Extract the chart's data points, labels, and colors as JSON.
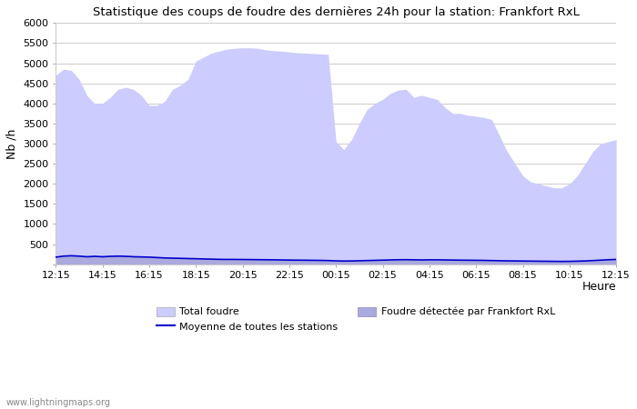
{
  "title": "Statistique des coups de foudre des dernières 24h pour la station: Frankfort RxL",
  "ylabel": "Nb /h",
  "xlabel": "Heure",
  "watermark": "www.lightningmaps.org",
  "x_ticks_labels": [
    "12:15",
    "14:15",
    "16:15",
    "18:15",
    "20:15",
    "22:15",
    "00:15",
    "02:15",
    "04:15",
    "06:15",
    "08:15",
    "10:15",
    "12:15"
  ],
  "ylim": [
    0,
    6000
  ],
  "yticks": [
    0,
    500,
    1000,
    1500,
    2000,
    2500,
    3000,
    3500,
    4000,
    4500,
    5000,
    5500,
    6000
  ],
  "legend_entry_total": "Total foudre",
  "legend_entry_detected": "Foudre détectée par Frankfort RxL",
  "legend_entry_mean": "Moyenne de toutes les stations",
  "total_foudre_color": "#ccccff",
  "detected_color": "#aaaadd",
  "mean_color": "#0000cc",
  "background_color": "#ffffff",
  "grid_color": "#cccccc",
  "total_foudre_values": [
    4700,
    4850,
    4820,
    4600,
    4200,
    4000,
    4000,
    4150,
    4350,
    4400,
    4350,
    4200,
    3950,
    3950,
    4050,
    4350,
    4450,
    4600,
    5050,
    5150,
    5250,
    5300,
    5350,
    5370,
    5380,
    5380,
    5370,
    5330,
    5310,
    5300,
    5280,
    5260,
    5250,
    5240,
    5230,
    5220,
    3050,
    2850,
    3100,
    3500,
    3850,
    4000,
    4100,
    4250,
    4330,
    4350,
    4150,
    4200,
    4150,
    4100,
    3900,
    3750,
    3750,
    3700,
    3680,
    3650,
    3600,
    3200,
    2800,
    2500,
    2200,
    2050,
    2000,
    1950,
    1900,
    1900,
    2000,
    2200,
    2500,
    2800,
    3000,
    3050,
    3100
  ],
  "mean_values": [
    175,
    200,
    210,
    200,
    185,
    195,
    185,
    195,
    200,
    195,
    185,
    180,
    175,
    165,
    155,
    150,
    145,
    140,
    135,
    130,
    125,
    120,
    118,
    118,
    116,
    114,
    112,
    110,
    108,
    105,
    102,
    100,
    98,
    96,
    94,
    90,
    82,
    78,
    80,
    85,
    90,
    95,
    100,
    105,
    110,
    112,
    108,
    105,
    108,
    108,
    105,
    102,
    100,
    98,
    96,
    94,
    90,
    86,
    82,
    80,
    78,
    76,
    74,
    72,
    70,
    68,
    70,
    75,
    80,
    90,
    100,
    110,
    118
  ]
}
